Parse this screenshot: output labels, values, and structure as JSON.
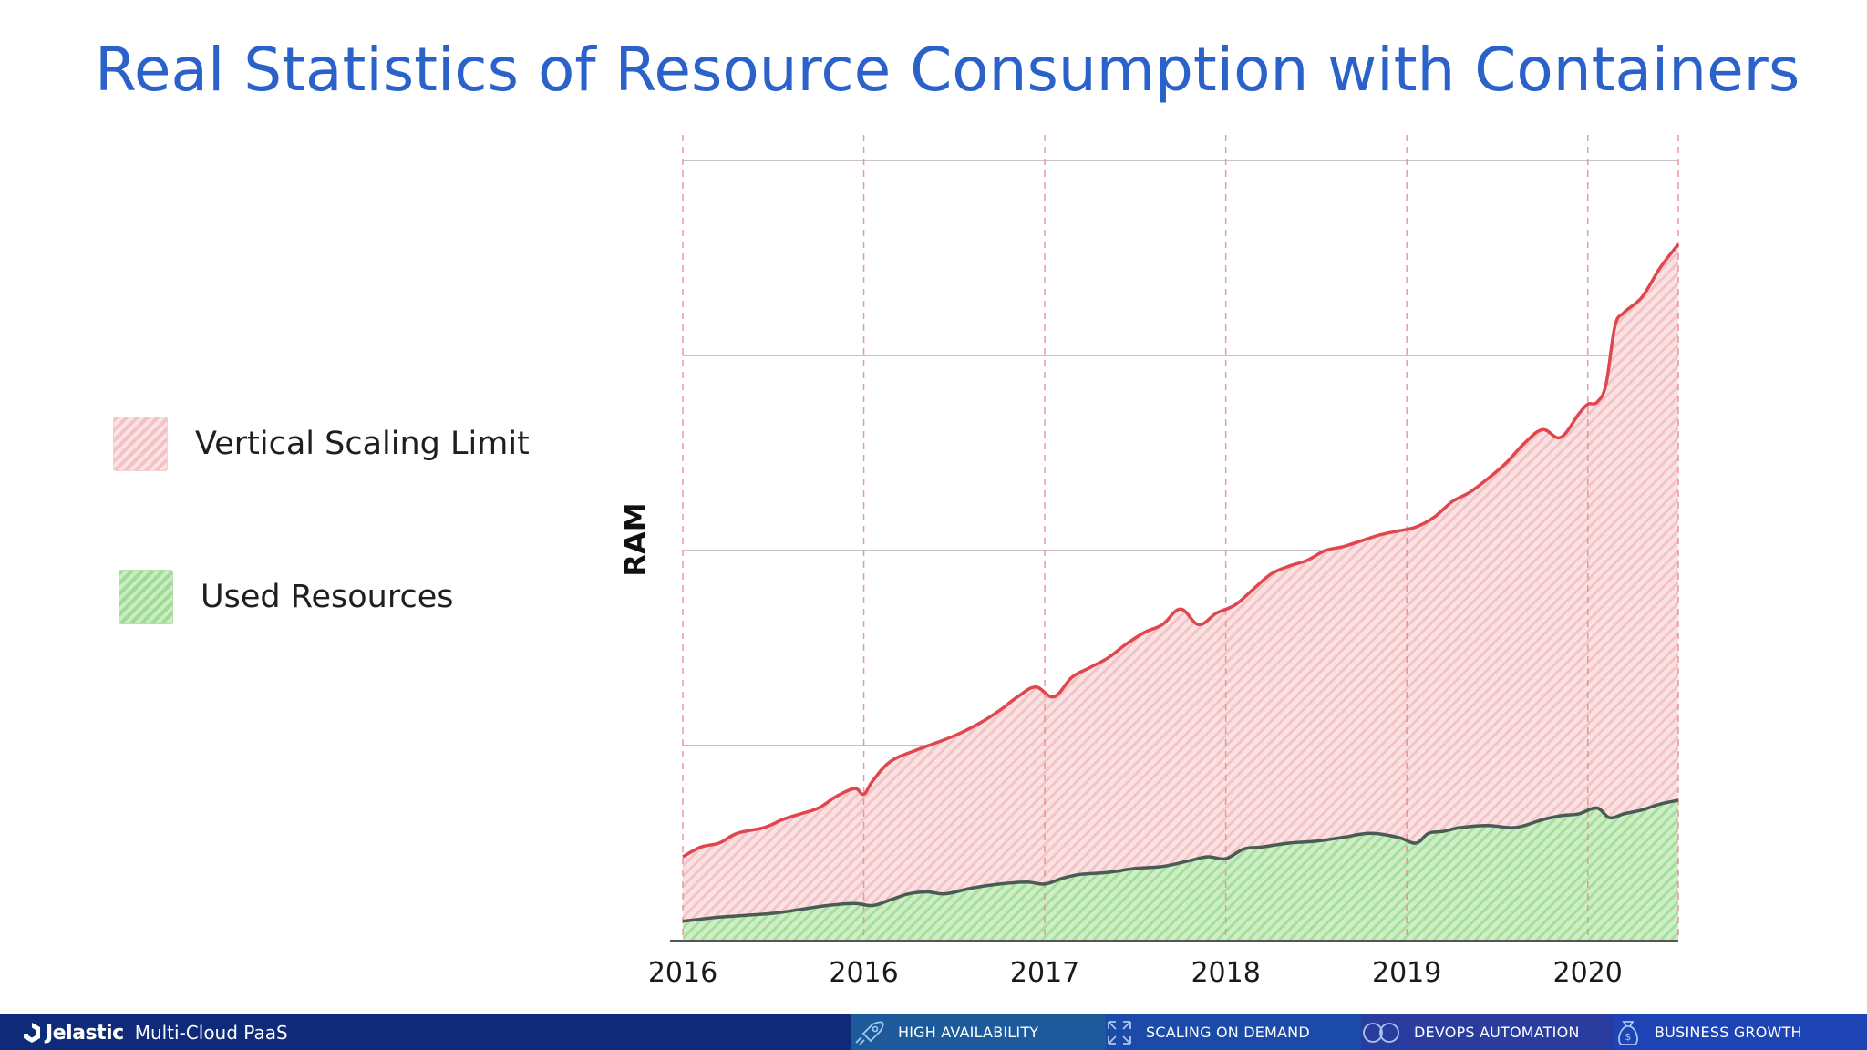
{
  "slide": {
    "title": "Real Statistics of Resource Consumption with Containers"
  },
  "legend": {
    "limit_label": "Vertical Scaling Limit",
    "used_label": "Used Resources"
  },
  "chart_data": {
    "type": "area",
    "ylabel": "RAM",
    "xlabel": "",
    "x_tick_labels": [
      "2016",
      "2016",
      "2017",
      "2018",
      "2019",
      "2020"
    ],
    "x_tick_positions": [
      0,
      1,
      2,
      3,
      4,
      5
    ],
    "xlim": [
      0,
      5.5
    ],
    "ylim": [
      0,
      4
    ],
    "y_gridlines": [
      1,
      2,
      3,
      4
    ],
    "y_tick_labels_shown": false,
    "grid": true,
    "series": [
      {
        "name": "Vertical Scaling Limit",
        "color": "#e0464d",
        "fill": "#f6cfd1",
        "x": [
          0,
          0.1,
          0.2,
          0.3,
          0.45,
          0.55,
          0.65,
          0.75,
          0.85,
          0.95,
          1.0,
          1.05,
          1.15,
          1.3,
          1.5,
          1.65,
          1.75,
          1.85,
          1.95,
          2.05,
          2.15,
          2.25,
          2.35,
          2.45,
          2.55,
          2.65,
          2.75,
          2.85,
          2.95,
          3.05,
          3.15,
          3.25,
          3.35,
          3.45,
          3.55,
          3.65,
          3.75,
          3.85,
          3.95,
          4.05,
          4.15,
          4.25,
          4.35,
          4.45,
          4.55,
          4.65,
          4.75,
          4.85,
          4.95,
          5.0,
          5.05,
          5.1,
          5.15,
          5.2,
          5.3,
          5.4,
          5.5
        ],
        "values": [
          0.43,
          0.48,
          0.5,
          0.55,
          0.58,
          0.62,
          0.65,
          0.68,
          0.74,
          0.78,
          0.75,
          0.82,
          0.92,
          0.98,
          1.05,
          1.12,
          1.18,
          1.25,
          1.3,
          1.25,
          1.35,
          1.4,
          1.45,
          1.52,
          1.58,
          1.62,
          1.7,
          1.62,
          1.68,
          1.72,
          1.8,
          1.88,
          1.92,
          1.95,
          2.0,
          2.02,
          2.05,
          2.08,
          2.1,
          2.12,
          2.17,
          2.25,
          2.3,
          2.37,
          2.45,
          2.55,
          2.62,
          2.58,
          2.7,
          2.75,
          2.76,
          2.85,
          3.15,
          3.22,
          3.3,
          3.45,
          3.57
        ]
      },
      {
        "name": "Used Resources",
        "color": "#4a5a55",
        "fill": "#b9e6b0",
        "x": [
          0,
          0.1,
          0.2,
          0.35,
          0.5,
          0.65,
          0.8,
          0.95,
          1.05,
          1.15,
          1.25,
          1.35,
          1.45,
          1.6,
          1.75,
          1.9,
          2.0,
          2.1,
          2.2,
          2.35,
          2.5,
          2.65,
          2.8,
          2.9,
          3.0,
          3.1,
          3.2,
          3.35,
          3.5,
          3.65,
          3.8,
          3.95,
          4.05,
          4.12,
          4.2,
          4.3,
          4.45,
          4.6,
          4.75,
          4.85,
          4.95,
          5.05,
          5.12,
          5.2,
          5.3,
          5.4,
          5.5
        ],
        "values": [
          0.1,
          0.11,
          0.12,
          0.13,
          0.14,
          0.16,
          0.18,
          0.19,
          0.18,
          0.21,
          0.24,
          0.25,
          0.24,
          0.27,
          0.29,
          0.3,
          0.29,
          0.32,
          0.34,
          0.35,
          0.37,
          0.38,
          0.41,
          0.43,
          0.42,
          0.47,
          0.48,
          0.5,
          0.51,
          0.53,
          0.55,
          0.53,
          0.5,
          0.55,
          0.56,
          0.58,
          0.59,
          0.58,
          0.62,
          0.64,
          0.65,
          0.68,
          0.63,
          0.65,
          0.67,
          0.7,
          0.72
        ]
      }
    ]
  },
  "footer": {
    "brand_name": "Jelastic",
    "brand_sub": "Multi-Cloud PaaS",
    "tiles": [
      {
        "label": "HIGH AVAILABILITY",
        "icon": "rocket-icon",
        "bg": "#1c5a9c"
      },
      {
        "label": "SCALING ON DEMAND",
        "icon": "scaling-arrows-icon",
        "bg": "#1b4aa8"
      },
      {
        "label": "DEVOPS AUTOMATION",
        "icon": "infinity-icon",
        "bg": "#2a3d9e"
      },
      {
        "label": "BUSINESS GROWTH",
        "icon": "money-bag-icon",
        "bg": "#1e43b4"
      }
    ]
  }
}
